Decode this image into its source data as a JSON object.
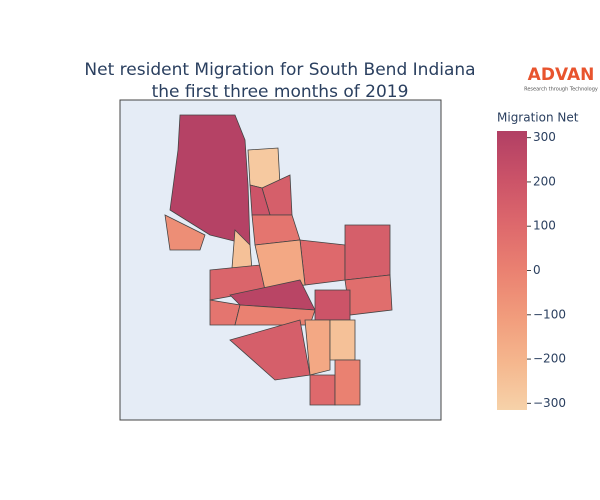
{
  "chart_data": {
    "type": "choropleth",
    "title": [
      "Net resident Migration for South Bend Indiana",
      "the first three months of 2019"
    ],
    "brand": {
      "name": "ADVAN",
      "tagline": "Research through Technology"
    },
    "colorbar_title": "Migration Net",
    "zlim": [
      -315,
      315
    ],
    "zticks": [
      300,
      200,
      100,
      0,
      {
        "value": -100,
        "label": "−100"
      },
      {
        "value": -200,
        "label": "−200"
      },
      {
        "value": -300,
        "label": "−300"
      }
    ],
    "colorscale": [
      "#f6d2a9",
      "#f5b78e",
      "#f19c7c",
      "#ea8171",
      "#dd686c",
      "#ca5268",
      "#b13f64"
    ],
    "background": "#e5ecf6",
    "values": [
      300,
      -280,
      150,
      200,
      -50,
      -250,
      50,
      100,
      150,
      80,
      120,
      -150,
      280,
      50,
      0,
      200,
      150,
      -150,
      -250,
      100,
      0
    ]
  }
}
